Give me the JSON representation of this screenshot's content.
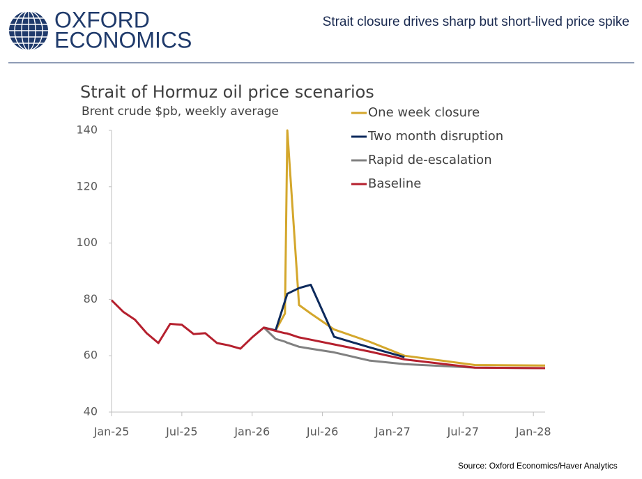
{
  "header": {
    "logo_lines": [
      "OXFORD",
      "ECONOMICS"
    ],
    "title": "Strait closure drives sharp but short-lived price spike"
  },
  "chart_data": {
    "type": "line",
    "title": "Strait of Hormuz oil price scenarios",
    "subtitle": "Brent crude $pb, weekly average",
    "x": [
      0,
      1,
      2,
      3,
      4,
      5,
      6,
      7,
      8,
      9,
      10,
      11,
      12,
      13,
      14,
      14.8,
      15,
      16,
      17,
      19,
      22,
      25,
      31,
      37
    ],
    "xlim": [
      0,
      37
    ],
    "xticks": [
      {
        "value": 0,
        "label": "Jan-25"
      },
      {
        "value": 6,
        "label": "Jul-25"
      },
      {
        "value": 12,
        "label": "Jan-26"
      },
      {
        "value": 18,
        "label": "Jul-26"
      },
      {
        "value": 24,
        "label": "Jan-27"
      },
      {
        "value": 30,
        "label": "Jul-27"
      },
      {
        "value": 36,
        "label": "Jan-28"
      }
    ],
    "ylim": [
      40,
      140
    ],
    "yticks": [
      40,
      60,
      80,
      100,
      120,
      140
    ],
    "grid": false,
    "series": [
      {
        "name": "One week closure",
        "color": "#d4a72c",
        "values": [
          null,
          null,
          null,
          null,
          null,
          null,
          null,
          null,
          null,
          null,
          null,
          null,
          null,
          70,
          69,
          75,
          140,
          78,
          75,
          69.3,
          65,
          60,
          56.7,
          56.5
        ]
      },
      {
        "name": "Two month disruption",
        "color": "#0d2a5c",
        "values": [
          null,
          null,
          null,
          null,
          null,
          null,
          null,
          null,
          null,
          null,
          null,
          null,
          null,
          70,
          69,
          79.4,
          82,
          84,
          85.2,
          66.7,
          63,
          59.5,
          null,
          null
        ]
      },
      {
        "name": "Rapid de-escalation",
        "color": "#808080",
        "values": [
          null,
          null,
          null,
          null,
          null,
          null,
          null,
          null,
          null,
          null,
          null,
          null,
          null,
          70,
          66,
          65,
          64.6,
          63.2,
          62.5,
          61.2,
          58.3,
          57,
          55.8,
          55.6
        ]
      },
      {
        "name": "Baseline",
        "color": "#b5202e",
        "values": [
          79.7,
          75.6,
          72.8,
          68,
          64.5,
          71.3,
          71,
          67.7,
          68,
          64.5,
          63.7,
          62.5,
          66.5,
          70,
          68.8,
          68,
          67.9,
          66.5,
          65.7,
          64,
          61.5,
          58.7,
          55.8,
          55.6
        ]
      }
    ]
  },
  "source": "Source: Oxford Economics/Haver Analytics"
}
